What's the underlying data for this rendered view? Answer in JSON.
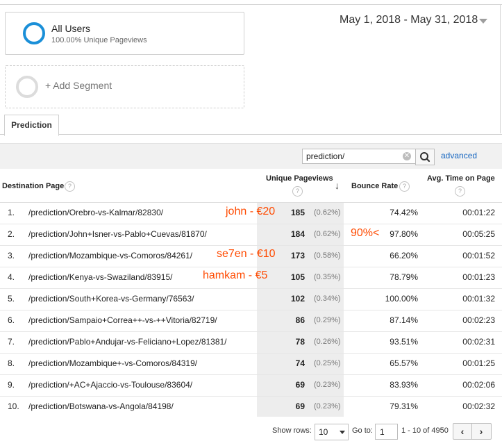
{
  "segment": {
    "title": "All Users",
    "subtitle": "100.00% Unique Pageviews"
  },
  "add_segment": {
    "label": "+ Add Segment"
  },
  "date_range": "May 1, 2018 - May 31, 2018",
  "tabs": [
    {
      "label": "Prediction"
    }
  ],
  "search": {
    "value": "prediction/",
    "clear_glyph": "✕",
    "icon": "search-icon"
  },
  "advanced_label": "advanced",
  "table": {
    "headers": {
      "destination": "Destination Page",
      "pageviews": "Unique Pageviews",
      "bounce": "Bounce Rate",
      "avg_time": "Avg. Time on Page",
      "help_glyph": "?"
    },
    "sort_glyph": "↓",
    "rows": [
      {
        "idx": "1.",
        "page": "/prediction/Orebro-vs-Kalmar/82830/",
        "pv": "185",
        "pct": "(0.62%)",
        "bounce": "74.42%",
        "time": "00:01:22"
      },
      {
        "idx": "2.",
        "page": "/prediction/John+Isner-vs-Pablo+Cuevas/81870/",
        "pv": "184",
        "pct": "(0.62%)",
        "bounce": "97.80%",
        "time": "00:05:25"
      },
      {
        "idx": "3.",
        "page": "/prediction/Mozambique-vs-Comoros/84261/",
        "pv": "173",
        "pct": "(0.58%)",
        "bounce": "66.20%",
        "time": "00:01:52"
      },
      {
        "idx": "4.",
        "page": "/prediction/Kenya-vs-Swaziland/83915/",
        "pv": "105",
        "pct": "(0.35%)",
        "bounce": "78.79%",
        "time": "00:01:23"
      },
      {
        "idx": "5.",
        "page": "/prediction/South+Korea-vs-Germany/76563/",
        "pv": "102",
        "pct": "(0.34%)",
        "bounce": "100.00%",
        "time": "00:01:32"
      },
      {
        "idx": "6.",
        "page": "/prediction/Sampaio+Correa++-vs-++Vitoria/82719/",
        "pv": "86",
        "pct": "(0.29%)",
        "bounce": "87.14%",
        "time": "00:02:23"
      },
      {
        "idx": "7.",
        "page": "/prediction/Pablo+Andujar-vs-Feliciano+Lopez/81381/",
        "pv": "78",
        "pct": "(0.26%)",
        "bounce": "93.51%",
        "time": "00:02:31"
      },
      {
        "idx": "8.",
        "page": "/prediction/Mozambique+-vs-Comoros/84319/",
        "pv": "74",
        "pct": "(0.25%)",
        "bounce": "65.57%",
        "time": "00:01:25"
      },
      {
        "idx": "9.",
        "page": "/prediction/+AC+Ajaccio-vs-Toulouse/83604/",
        "pv": "69",
        "pct": "(0.23%)",
        "bounce": "83.93%",
        "time": "00:02:06"
      },
      {
        "idx": "10.",
        "page": "/prediction/Botswana-vs-Angola/84198/",
        "pv": "69",
        "pct": "(0.23%)",
        "bounce": "79.31%",
        "time": "00:02:32"
      }
    ]
  },
  "annotations": {
    "john": "john - €20",
    "bounce_note": "90%<",
    "se7en": "se7en - €10",
    "hamkam": "hamkam - €5",
    "color": "#ff4a00"
  },
  "footer": {
    "show_rows_label": "Show rows:",
    "rows_value": "10",
    "goto_label": "Go to:",
    "goto_value": "1",
    "range_text": "1 - 10 of 4950",
    "prev_glyph": "‹",
    "next_glyph": "›"
  },
  "colors": {
    "accent": "#1a8fd8",
    "link": "#1565c0"
  }
}
